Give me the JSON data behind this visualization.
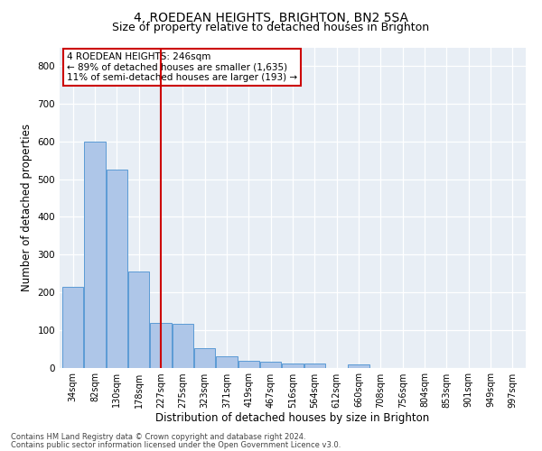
{
  "title": "4, ROEDEAN HEIGHTS, BRIGHTON, BN2 5SA",
  "subtitle": "Size of property relative to detached houses in Brighton",
  "xlabel": "Distribution of detached houses by size in Brighton",
  "ylabel": "Number of detached properties",
  "categories": [
    "34sqm",
    "82sqm",
    "130sqm",
    "178sqm",
    "227sqm",
    "275sqm",
    "323sqm",
    "371sqm",
    "419sqm",
    "467sqm",
    "516sqm",
    "564sqm",
    "612sqm",
    "660sqm",
    "708sqm",
    "756sqm",
    "804sqm",
    "853sqm",
    "901sqm",
    "949sqm",
    "997sqm"
  ],
  "values": [
    215,
    600,
    525,
    255,
    118,
    115,
    52,
    30,
    18,
    15,
    10,
    10,
    0,
    8,
    0,
    0,
    0,
    0,
    0,
    0,
    0
  ],
  "bar_color": "#aec6e8",
  "bar_edge_color": "#5b9bd5",
  "vline_x": 4.0,
  "vline_color": "#cc0000",
  "annotation_title": "4 ROEDEAN HEIGHTS: 246sqm",
  "annotation_line1": "← 89% of detached houses are smaller (1,635)",
  "annotation_line2": "11% of semi-detached houses are larger (193) →",
  "annotation_box_color": "#cc0000",
  "ylim": [
    0,
    850
  ],
  "yticks": [
    0,
    100,
    200,
    300,
    400,
    500,
    600,
    700,
    800
  ],
  "footnote1": "Contains HM Land Registry data © Crown copyright and database right 2024.",
  "footnote2": "Contains public sector information licensed under the Open Government Licence v3.0.",
  "plot_bg_color": "#e8eef5",
  "title_fontsize": 10,
  "subtitle_fontsize": 9,
  "tick_fontsize": 7,
  "ylabel_fontsize": 8.5,
  "xlabel_fontsize": 8.5,
  "annotation_fontsize": 7.5,
  "footnote_fontsize": 6
}
